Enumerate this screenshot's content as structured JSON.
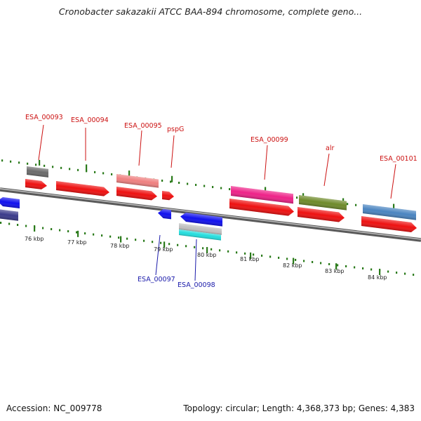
{
  "title": "Cronobacter sakazakii ATCC BAA-894 chromosome, complete geno...",
  "footer": {
    "accession": "Accession: NC_009778",
    "info": "Topology: circular; Length: 4,368,373 bp; Genes: 4,383"
  },
  "scale_labels": [
    "76 kbp",
    "77 kbp",
    "78 kbp",
    "79 kbp",
    "80 kbp",
    "81 kbp",
    "82 kbp",
    "83 kbp",
    "84 kbp"
  ],
  "gene_labels": {
    "top": [
      "ESA_00093",
      "ESA_00094",
      "ESA_00095",
      "pspG",
      "ESA_00099",
      "alr",
      "ESA_00101"
    ],
    "bottom": [
      "ESA_00097",
      "ESA_00098"
    ]
  },
  "colors": {
    "top_label": "#cc1111",
    "bottom_label": "#1a1aaa",
    "tick": "#2a7a1a",
    "backbone": "#8a8a8a",
    "cds": "#ee1111",
    "reverse_cds": "#1111ee"
  },
  "features": [
    {
      "name": "grey-feature-93",
      "color": "#6b6b6b"
    },
    {
      "name": "cds-93",
      "color": "#ee1111"
    },
    {
      "name": "cds-94",
      "color": "#ee1111"
    },
    {
      "name": "pink-feature-95",
      "color": "#ef8080"
    },
    {
      "name": "cds-95",
      "color": "#ee1111"
    },
    {
      "name": "cds-pspG",
      "color": "#ee1111"
    },
    {
      "name": "magenta-feature-99",
      "color": "#ee2288"
    },
    {
      "name": "cds-99",
      "color": "#ee1111"
    },
    {
      "name": "olive-feature-alr",
      "color": "#6e8a2a"
    },
    {
      "name": "cds-alr",
      "color": "#ee1111"
    },
    {
      "name": "steelblue-feature-101",
      "color": "#4a84c0"
    },
    {
      "name": "cds-101",
      "color": "#ee1111"
    },
    {
      "name": "blue-cds-left",
      "color": "#1111ee"
    },
    {
      "name": "navy-feature-left",
      "color": "#3a3a8a"
    },
    {
      "name": "blue-cds-97",
      "color": "#1111ee"
    },
    {
      "name": "blue-cds-98",
      "color": "#1111ee"
    },
    {
      "name": "silver-feature-98",
      "color": "#c0c0c0"
    },
    {
      "name": "cyan-feature-98",
      "color": "#22dddd"
    }
  ]
}
